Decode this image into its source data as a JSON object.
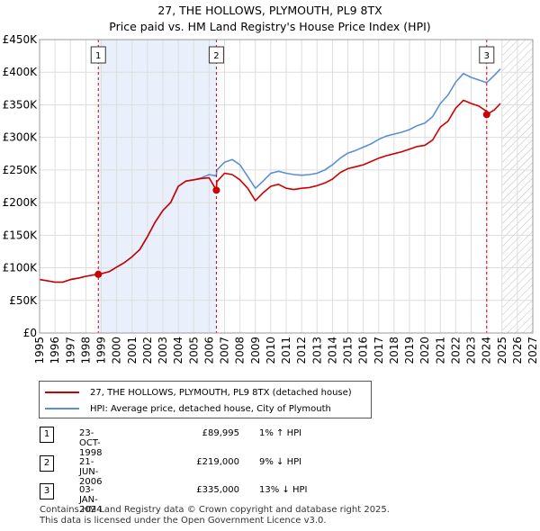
{
  "title": "27, THE HOLLOWS, PLYMOUTH, PL9 8TX",
  "subtitle": "Price paid vs. HM Land Registry's House Price Index (HPI)",
  "chart_data": {
    "type": "line",
    "title": "27, THE HOLLOWS, PLYMOUTH, PL9 8TX",
    "subtitle": "Price paid vs. HM Land Registry's House Price Index (HPI)",
    "xlabel": "",
    "ylabel": "",
    "xlim": [
      1995,
      2027
    ],
    "ylim": [
      0,
      450000
    ],
    "grid": true,
    "y_ticks": [
      0,
      50000,
      100000,
      150000,
      200000,
      250000,
      300000,
      350000,
      400000,
      450000
    ],
    "y_tick_labels": [
      "£0",
      "£50K",
      "£100K",
      "£150K",
      "£200K",
      "£250K",
      "£300K",
      "£350K",
      "£400K",
      "£450K"
    ],
    "x_ticks": [
      1995,
      1996,
      1997,
      1998,
      1999,
      2000,
      2001,
      2002,
      2003,
      2004,
      2005,
      2006,
      2007,
      2008,
      2009,
      2010,
      2011,
      2012,
      2013,
      2014,
      2015,
      2016,
      2017,
      2018,
      2019,
      2020,
      2021,
      2022,
      2023,
      2024,
      2025,
      2026,
      2027
    ],
    "x_tick_labels": [
      "1995",
      "1996",
      "1997",
      "1998",
      "1999",
      "2000",
      "2001",
      "2002",
      "2003",
      "2004",
      "2005",
      "2006",
      "2007",
      "2008",
      "2009",
      "2010",
      "2011",
      "2012",
      "2013",
      "2014",
      "2015",
      "2016",
      "2017",
      "2018",
      "2019",
      "2020",
      "2021",
      "2022",
      "2023",
      "2024",
      "2025",
      "2026",
      "2027"
    ],
    "ownership_periods": [
      [
        1998.81,
        2006.47
      ]
    ],
    "forecast_start": 2025.0,
    "series": [
      {
        "name": "27, THE HOLLOWS, PLYMOUTH, PL9 8TX (detached house)",
        "color": "#cc0000",
        "x": [
          1995.0,
          1995.5,
          1996.0,
          1996.5,
          1997.0,
          1997.5,
          1998.0,
          1998.5,
          1998.81,
          1999.0,
          1999.5,
          2000.0,
          2000.5,
          2001.0,
          2001.5,
          2002.0,
          2002.5,
          2003.0,
          2003.5,
          2004.0,
          2004.5,
          2005.0,
          2005.5,
          2006.0,
          2006.47,
          2006.5,
          2007.0,
          2007.5,
          2008.0,
          2008.5,
          2009.0,
          2009.5,
          2010.0,
          2010.5,
          2011.0,
          2011.5,
          2012.0,
          2012.5,
          2013.0,
          2013.5,
          2014.0,
          2014.5,
          2015.0,
          2015.5,
          2016.0,
          2016.5,
          2017.0,
          2017.5,
          2018.0,
          2018.5,
          2019.0,
          2019.5,
          2020.0,
          2020.5,
          2021.0,
          2021.5,
          2022.0,
          2022.5,
          2023.0,
          2023.5,
          2024.0,
          2024.01,
          2024.5,
          2024.9
        ],
        "y": [
          82000,
          80000,
          78000,
          78000,
          82000,
          84000,
          87000,
          89000,
          89995,
          91000,
          94000,
          101000,
          108000,
          117000,
          128000,
          148000,
          170000,
          188000,
          200000,
          225000,
          233000,
          235000,
          237000,
          238000,
          219000,
          232000,
          245000,
          243000,
          235000,
          222000,
          203000,
          215000,
          225000,
          228000,
          222000,
          220000,
          222000,
          223000,
          226000,
          230000,
          236000,
          246000,
          252000,
          255000,
          258000,
          263000,
          268000,
          272000,
          275000,
          278000,
          282000,
          286000,
          288000,
          296000,
          316000,
          325000,
          345000,
          357000,
          352000,
          348000,
          340000,
          335000,
          342000,
          352000
        ]
      },
      {
        "name": "HPI: Average price, detached house, City of Plymouth",
        "color": "#5b8fd4",
        "x": [
          1995.0,
          1995.5,
          1996.0,
          1996.5,
          1997.0,
          1997.5,
          1998.0,
          1998.5,
          1998.81,
          1999.0,
          1999.5,
          2000.0,
          2000.5,
          2001.0,
          2001.5,
          2002.0,
          2002.5,
          2003.0,
          2003.5,
          2004.0,
          2004.5,
          2005.0,
          2005.5,
          2006.0,
          2006.47,
          2006.5,
          2007.0,
          2007.5,
          2008.0,
          2008.5,
          2009.0,
          2009.5,
          2010.0,
          2010.5,
          2011.0,
          2011.5,
          2012.0,
          2012.5,
          2013.0,
          2013.5,
          2014.0,
          2014.5,
          2015.0,
          2015.5,
          2016.0,
          2016.5,
          2017.0,
          2017.5,
          2018.0,
          2018.5,
          2019.0,
          2019.5,
          2020.0,
          2020.5,
          2021.0,
          2021.5,
          2022.0,
          2022.5,
          2023.0,
          2023.5,
          2024.0,
          2024.01,
          2024.5,
          2024.9
        ],
        "y": [
          82000,
          80000,
          78000,
          78000,
          82000,
          84000,
          87000,
          89000,
          89000,
          91000,
          94000,
          101000,
          108000,
          117000,
          128000,
          148000,
          170000,
          188000,
          200000,
          225000,
          233000,
          235000,
          238000,
          243000,
          241000,
          250000,
          262000,
          266000,
          258000,
          240000,
          222000,
          233000,
          245000,
          248000,
          245000,
          243000,
          242000,
          243000,
          245000,
          250000,
          258000,
          268000,
          276000,
          280000,
          285000,
          290000,
          297000,
          302000,
          305000,
          308000,
          312000,
          318000,
          322000,
          332000,
          352000,
          365000,
          385000,
          398000,
          392000,
          388000,
          384000,
          384000,
          395000,
          405000
        ]
      }
    ],
    "transactions": [
      {
        "label": "1",
        "x": 1998.81,
        "date": "23-OCT-1998",
        "price": 89995,
        "price_text": "£89,995",
        "hpi_text": "1% ↑ HPI"
      },
      {
        "label": "2",
        "x": 2006.47,
        "date": "21-JUN-2006",
        "price": 219000,
        "price_text": "£219,000",
        "hpi_text": "9% ↓ HPI"
      },
      {
        "label": "3",
        "x": 2024.01,
        "date": "03-JAN-2024",
        "price": 335000,
        "price_text": "£335,000",
        "hpi_text": "13% ↓ HPI"
      }
    ]
  },
  "legend": {
    "property": "27, THE HOLLOWS, PLYMOUTH, PL9 8TX (detached house)",
    "hpi": "HPI: Average price, detached house, City of Plymouth"
  },
  "footer": {
    "line1": "Contains HM Land Registry data © Crown copyright and database right 2025.",
    "line2": "This data is licensed under the Open Government Licence v3.0."
  }
}
